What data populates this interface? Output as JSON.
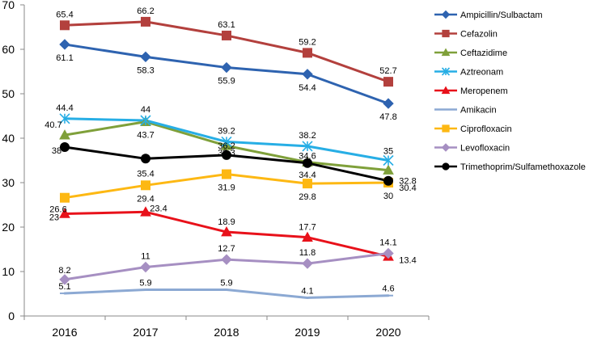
{
  "chart_data": {
    "type": "line",
    "title": "",
    "xlabel": "",
    "ylabel": "",
    "ylim": [
      0,
      70
    ],
    "yticks": [
      0,
      10,
      20,
      30,
      40,
      50,
      60,
      70
    ],
    "grid": false,
    "legend_position": "right",
    "categories": [
      "2016",
      "2017",
      "2018",
      "2019",
      "2020"
    ],
    "series": [
      {
        "name": "Ampicillin/Sulbactam",
        "color": "#2e63b0",
        "marker": "diamond",
        "values": [
          61.1,
          58.3,
          55.9,
          54.4,
          47.8
        ],
        "labels": [
          "61.1",
          "58.3",
          "55.9",
          "54.4",
          "47.8"
        ]
      },
      {
        "name": "Cefazolin",
        "color": "#b3403d",
        "marker": "square",
        "values": [
          65.4,
          66.2,
          63.1,
          59.2,
          52.7
        ],
        "labels": [
          "65.4",
          "66.2",
          "63.1",
          "59.2",
          "52.7"
        ]
      },
      {
        "name": "Ceftazidime",
        "color": "#7fa03a",
        "marker": "triangle",
        "values": [
          40.7,
          43.7,
          38.3,
          34.6,
          32.8
        ],
        "labels": [
          "40.7",
          "43.7",
          "38.3",
          "34.6",
          "32.8"
        ]
      },
      {
        "name": "Aztreonam",
        "color": "#27aee5",
        "marker": "star",
        "values": [
          44.4,
          44,
          39.2,
          38.2,
          35
        ],
        "labels": [
          "44.4",
          "44",
          "39.2",
          "38.2",
          "35"
        ]
      },
      {
        "name": "Meropenem",
        "color": "#e8111a",
        "marker": "triangle",
        "values": [
          23,
          23.4,
          18.9,
          17.7,
          13.4
        ],
        "labels": [
          "23",
          "23.4",
          "18.9",
          "17.7",
          "13.4"
        ]
      },
      {
        "name": "Amikacin",
        "color": "#8ca9d3",
        "marker": "dash",
        "values": [
          5.1,
          5.9,
          5.9,
          4.1,
          4.6
        ],
        "labels": [
          "5.1",
          "5.9",
          "5.9",
          "4.1",
          "4.6"
        ]
      },
      {
        "name": "Ciprofloxacin",
        "color": "#fdb813",
        "marker": "square",
        "values": [
          26.6,
          29.4,
          31.9,
          29.8,
          30
        ],
        "labels": [
          "26.6",
          "29.4",
          "31.9",
          "29.8",
          "30"
        ]
      },
      {
        "name": "Levofloxacin",
        "color": "#a68fc2",
        "marker": "diamond",
        "values": [
          8.2,
          11,
          12.7,
          11.8,
          14.1
        ],
        "labels": [
          "8.2",
          "11",
          "12.7",
          "11.8",
          "14.1"
        ]
      },
      {
        "name": "Trimethoprim/Sulfamethoxazole",
        "color": "#000000",
        "marker": "circle",
        "values": [
          38,
          35.4,
          36.2,
          34.4,
          30.4
        ],
        "labels": [
          "38",
          "35.4",
          "36.2",
          "34.4",
          "30.4"
        ]
      }
    ]
  }
}
